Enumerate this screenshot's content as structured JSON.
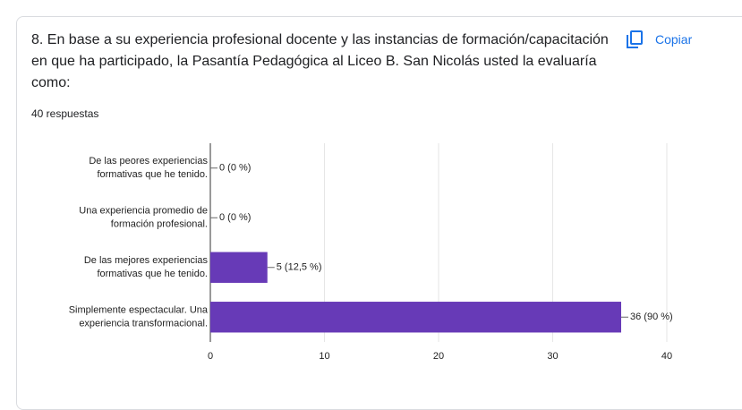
{
  "header": {
    "title": "8. En base a su experiencia profesional docente y las instancias de formación/capacitación en que ha participado, la Pasantía Pedagógica al Liceo B. San Nicolás usted la evaluaría como:",
    "responses": "40 respuestas",
    "copy_button": "Copiar"
  },
  "chart_data": {
    "type": "hbar",
    "color": "#673ab7",
    "categories": [
      [
        "De las peores experiencias",
        "formativas que he tenido."
      ],
      [
        "Una experiencia promedio de",
        "formación profesional."
      ],
      [
        "De las mejores experiencias",
        "formativas que he tenido."
      ],
      [
        "Simplemente espectacular. Una",
        "experiencia transformacional."
      ]
    ],
    "values": [
      0,
      0,
      5,
      36
    ],
    "value_labels": [
      "0 (0 %)",
      "0 (0 %)",
      "5 (12,5 %)",
      "36 (90 %)"
    ],
    "xlim": [
      0,
      40
    ],
    "xticks": [
      0,
      10,
      20,
      30,
      40
    ],
    "grid": true
  }
}
